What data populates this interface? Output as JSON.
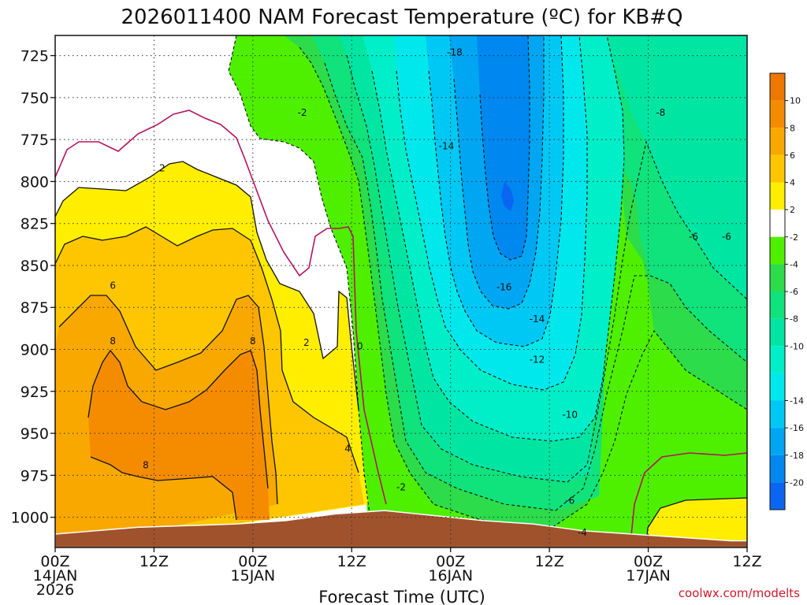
{
  "chart_data": {
    "type": "heatmap",
    "title": "2026011400 NAM Forecast Temperature (ºC) for KB#Q",
    "xlabel": "Forecast Time (UTC)",
    "ylabel": "",
    "credit": "coolwx.com/modelts",
    "x_unit": "forecast hour",
    "xlim": [
      0,
      84
    ],
    "x_ticks": [
      {
        "hour": 0,
        "lines": [
          "00Z",
          "14JAN",
          "2026"
        ]
      },
      {
        "hour": 12,
        "lines": [
          "12Z"
        ]
      },
      {
        "hour": 24,
        "lines": [
          "00Z",
          "15JAN"
        ]
      },
      {
        "hour": 36,
        "lines": [
          "12Z"
        ]
      },
      {
        "hour": 48,
        "lines": [
          "00Z",
          "16JAN"
        ]
      },
      {
        "hour": 60,
        "lines": [
          "12Z"
        ]
      },
      {
        "hour": 72,
        "lines": [
          "00Z",
          "17JAN"
        ]
      },
      {
        "hour": 84,
        "lines": [
          "12Z"
        ]
      }
    ],
    "y_unit": "hPa",
    "ylim": [
      1018,
      713
    ],
    "y_ticks": [
      725,
      750,
      775,
      800,
      825,
      850,
      875,
      900,
      925,
      950,
      975,
      1000
    ],
    "grid": true,
    "colorbar": {
      "placement": "right",
      "bands": [
        {
          "from": 10,
          "to": 12,
          "color": "#ee7700"
        },
        {
          "from": 8,
          "to": 10,
          "color": "#f58c00"
        },
        {
          "from": 6,
          "to": 8,
          "color": "#f9a800"
        },
        {
          "from": 4,
          "to": 6,
          "color": "#fdc600"
        },
        {
          "from": 2,
          "to": 4,
          "color": "#ffee00"
        },
        {
          "from": -2,
          "to": 2,
          "color": "#ffffff"
        },
        {
          "from": -4,
          "to": -2,
          "color": "#4ef000"
        },
        {
          "from": -6,
          "to": -4,
          "color": "#2cdc4a"
        },
        {
          "from": -8,
          "to": -6,
          "color": "#10e27c"
        },
        {
          "from": -10,
          "to": -8,
          "color": "#00e6a2"
        },
        {
          "from": -12,
          "to": -10,
          "color": "#00eec8"
        },
        {
          "from": -14,
          "to": -12,
          "color": "#00e8ec"
        },
        {
          "from": -16,
          "to": -14,
          "color": "#00c8f4"
        },
        {
          "from": -18,
          "to": -16,
          "color": "#00a6f2"
        },
        {
          "from": -20,
          "to": -18,
          "color": "#0087f0"
        },
        {
          "from": -22,
          "to": -20,
          "color": "#0a66f0"
        }
      ],
      "tick_labels": [
        "10",
        "8",
        "6",
        "4",
        "2",
        "-2",
        "-4",
        "-6",
        "-8",
        "-10",
        "-14",
        "-16",
        "-18",
        "-20"
      ]
    },
    "terrain_color": "#a0522d",
    "surface_pressure": [
      [
        0,
        1010
      ],
      [
        5,
        1008
      ],
      [
        10,
        1006
      ],
      [
        16,
        1005
      ],
      [
        22,
        1004
      ],
      [
        28,
        1002
      ],
      [
        34,
        998
      ],
      [
        40,
        996
      ],
      [
        46,
        999
      ],
      [
        52,
        1002
      ],
      [
        58,
        1004
      ],
      [
        64,
        1008
      ],
      [
        70,
        1010
      ],
      [
        76,
        1012
      ],
      [
        82,
        1014
      ],
      [
        84,
        1014
      ]
    ],
    "contour_labels": [
      {
        "text": "-18",
        "hour": 48.5,
        "p": 723
      },
      {
        "text": "-2",
        "hour": 30,
        "p": 759
      },
      {
        "text": "-8",
        "hour": 73.5,
        "p": 759
      },
      {
        "text": "-14",
        "hour": 47.5,
        "p": 779
      },
      {
        "text": "2",
        "hour": 13,
        "p": 792
      },
      {
        "text": "-6",
        "hour": 77.5,
        "p": 833
      },
      {
        "text": "-6",
        "hour": 81.5,
        "p": 833
      },
      {
        "text": "-16",
        "hour": 54.5,
        "p": 863
      },
      {
        "text": "6",
        "hour": 7,
        "p": 862
      },
      {
        "text": "-14",
        "hour": 58.5,
        "p": 882
      },
      {
        "text": "8",
        "hour": 7,
        "p": 895
      },
      {
        "text": "8",
        "hour": 24,
        "p": 895
      },
      {
        "text": "2",
        "hour": 30.5,
        "p": 896
      },
      {
        "text": "0",
        "hour": 37,
        "p": 898
      },
      {
        "text": "-12",
        "hour": 58.5,
        "p": 906
      },
      {
        "text": "-10",
        "hour": 62.5,
        "p": 939
      },
      {
        "text": "4",
        "hour": 35.5,
        "p": 959
      },
      {
        "text": "8",
        "hour": 11,
        "p": 969
      },
      {
        "text": "-2",
        "hour": 42,
        "p": 982
      },
      {
        "text": "-6",
        "hour": 62.5,
        "p": 990
      },
      {
        "text": "-4",
        "hour": 64,
        "p": 1009
      }
    ]
  }
}
